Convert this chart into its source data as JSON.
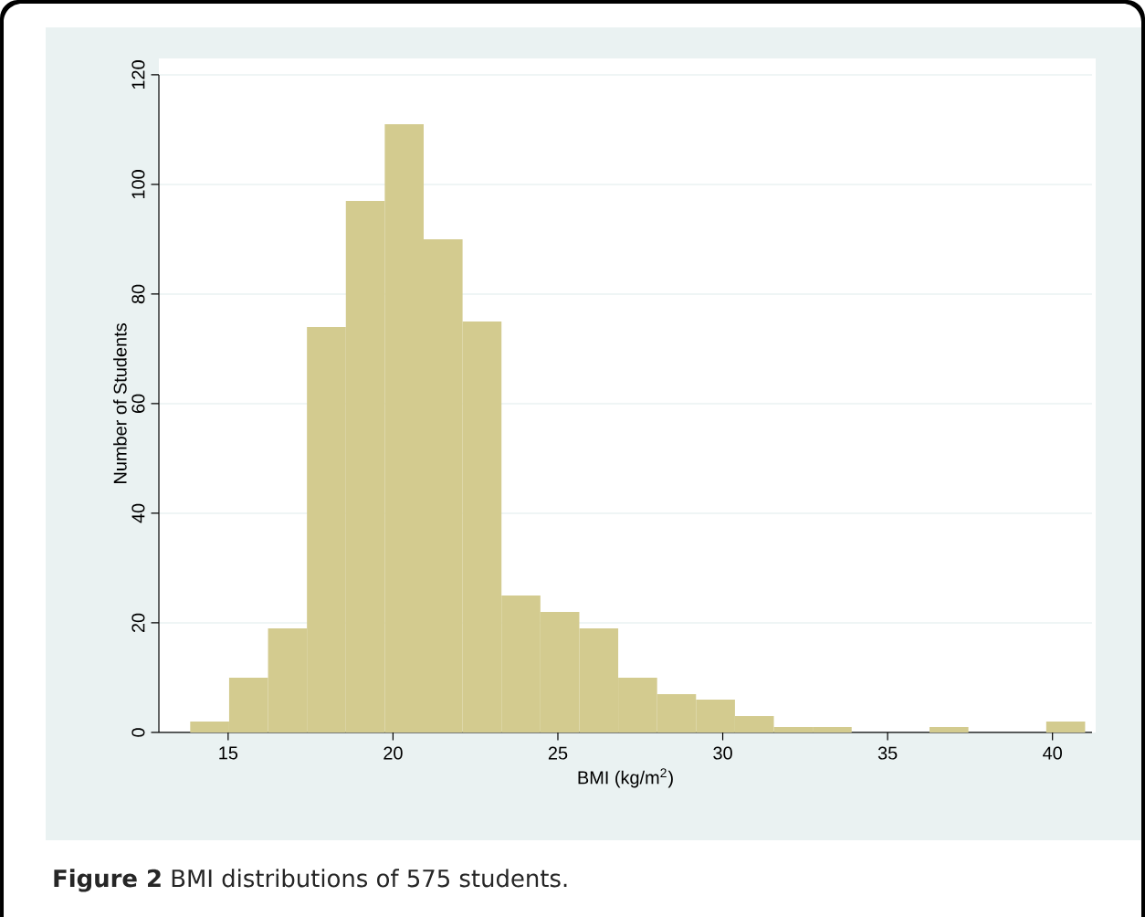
{
  "chart_data": {
    "type": "histogram",
    "xlabel": "BMI (kg/m$^{2}$)",
    "ylabel": "Number of Students",
    "annotations": [
      "**Figure 2** BMI distributions of 575 students."
    ],
    "bins": [
      13.85,
      15.03,
      16.21,
      17.39,
      18.57,
      19.75,
      20.93,
      22.11,
      23.29,
      24.47,
      25.65,
      26.83,
      28.01,
      29.19,
      30.37,
      31.55,
      32.73,
      33.91,
      35.09,
      36.27,
      37.45,
      38.63,
      39.81,
      40.99
    ],
    "values": [
      2,
      10,
      19,
      74,
      97,
      111,
      90,
      75,
      25,
      22,
      19,
      10,
      7,
      6,
      3,
      1,
      1,
      0,
      0,
      1,
      0,
      0,
      2
    ],
    "color": "#d3cb8f",
    "xlim": [
      12.9,
      41.2
    ],
    "ylim": [
      0,
      120
    ],
    "xticks": [
      15,
      20,
      25,
      30,
      35,
      40
    ],
    "yticks": [
      0,
      20,
      40,
      60,
      80,
      100,
      120
    ],
    "grid": "y"
  }
}
